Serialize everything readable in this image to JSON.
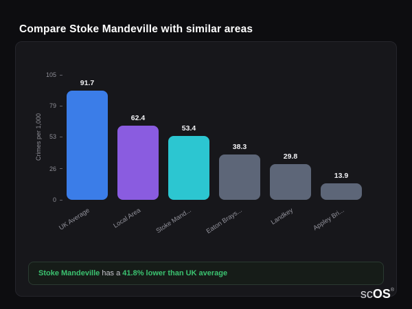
{
  "page": {
    "title": "Compare Stoke Mandeville with similar areas",
    "brand": {
      "text_light": "sc",
      "text_bold": "OS",
      "registered": "®"
    }
  },
  "chart_data": {
    "type": "bar",
    "title": "",
    "xlabel": "",
    "ylabel": "Crimes per 1,000",
    "ylim": [
      0,
      105
    ],
    "yticks": [
      105,
      79,
      53,
      26,
      0
    ],
    "grid": false,
    "legend": "none",
    "categories": [
      "UK Average",
      "Local Area",
      "Stoke Mand...",
      "Eaton Brays...",
      "Landkey",
      "Appley Bri..."
    ],
    "values": [
      91.7,
      62.4,
      53.4,
      38.3,
      29.8,
      13.9
    ],
    "bar_colors": [
      "#3b7de8",
      "#8a5ce0",
      "#2cc6d1",
      "#5d6678",
      "#5d6678",
      "#5d6678"
    ]
  },
  "summary": {
    "accent_color": "#3bc270",
    "segments": [
      {
        "text": "Stoke Mandeville",
        "emphasis": true
      },
      {
        "text": " has a ",
        "emphasis": false
      },
      {
        "text": "41.8% lower than UK average",
        "emphasis": true
      }
    ]
  }
}
